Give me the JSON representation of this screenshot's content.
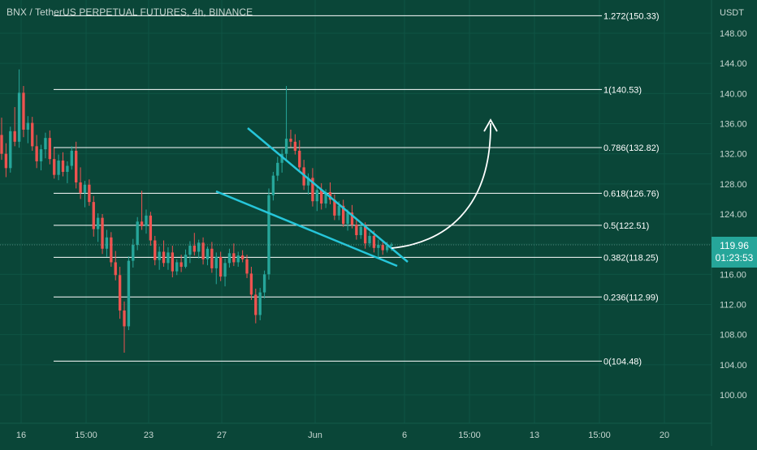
{
  "header": {
    "title": "BNX / TetherUS PERPETUAL FUTURES, 4h, BINANCE",
    "unit": "USDT"
  },
  "price_box": {
    "price": "119.96",
    "countdown": "01:23:53"
  },
  "colors": {
    "background": "#0a4638",
    "up": "#26a69a",
    "down": "#ef5350",
    "trendline": "#26c6da",
    "fib_line": "#ffffff",
    "arrow": "#ffffff",
    "grid": "#0f5444"
  },
  "chart_data": {
    "type": "candlestick",
    "title": "BNX / TetherUS PERPETUAL FUTURES, 4h, BINANCE",
    "ylabel": "USDT",
    "ylim": [
      96,
      154
    ],
    "y_ticks": [
      "148.00",
      "144.00",
      "140.00",
      "136.00",
      "132.00",
      "128.00",
      "124.00",
      "120.00",
      "116.00",
      "112.00",
      "108.00",
      "104.00",
      "100.00"
    ],
    "x_ticks": [
      "16",
      "15:00",
      "23",
      "27",
      "Jun",
      "6",
      "15:00",
      "13",
      "15:00",
      "20"
    ],
    "fib_levels": [
      {
        "label": "1.272(150.33)",
        "value": 150.33
      },
      {
        "label": "1(140.53)",
        "value": 140.53
      },
      {
        "label": "0.786(132.82)",
        "value": 132.82
      },
      {
        "label": "0.618(126.76)",
        "value": 126.76
      },
      {
        "label": "0.5(122.51)",
        "value": 122.51
      },
      {
        "label": "0.382(118.25)",
        "value": 118.25
      },
      {
        "label": "0.236(112.99)",
        "value": 112.99
      },
      {
        "label": "0(104.48)",
        "value": 104.48
      }
    ],
    "last_price": 119.96,
    "ohlc": [
      [
        134.5,
        136.8,
        131.2,
        132.0
      ],
      [
        132.0,
        133.4,
        128.9,
        130.1
      ],
      [
        130.1,
        135.6,
        129.5,
        135.0
      ],
      [
        135.0,
        138.2,
        133.0,
        133.6
      ],
      [
        133.6,
        143.2,
        132.8,
        140.1
      ],
      [
        140.1,
        141.0,
        134.2,
        135.2
      ],
      [
        135.2,
        137.0,
        133.4,
        136.1
      ],
      [
        136.1,
        136.9,
        132.4,
        133.0
      ],
      [
        133.0,
        134.5,
        130.1,
        131.0
      ],
      [
        131.0,
        133.2,
        129.8,
        132.6
      ],
      [
        132.6,
        134.8,
        131.4,
        134.1
      ],
      [
        134.1,
        135.1,
        130.6,
        131.3
      ],
      [
        131.3,
        132.8,
        128.7,
        129.2
      ],
      [
        129.2,
        131.9,
        128.5,
        131.1
      ],
      [
        131.1,
        132.2,
        129.0,
        129.6
      ],
      [
        129.6,
        131.0,
        128.1,
        130.4
      ],
      [
        130.4,
        133.0,
        129.9,
        132.4
      ],
      [
        132.4,
        133.6,
        127.4,
        128.2
      ],
      [
        128.2,
        130.2,
        126.0,
        126.8
      ],
      [
        126.8,
        128.4,
        124.9,
        127.9
      ],
      [
        127.9,
        128.6,
        125.1,
        125.6
      ],
      [
        125.6,
        126.4,
        121.0,
        122.0
      ],
      [
        122.0,
        124.1,
        120.3,
        123.5
      ],
      [
        123.5,
        124.0,
        118.7,
        119.4
      ],
      [
        119.4,
        121.9,
        118.3,
        120.9
      ],
      [
        120.9,
        121.6,
        117.0,
        117.6
      ],
      [
        117.6,
        119.1,
        115.2,
        115.9
      ],
      [
        115.9,
        117.0,
        110.1,
        111.2
      ],
      [
        111.2,
        112.4,
        105.6,
        109.1
      ],
      [
        109.1,
        118.4,
        108.6,
        117.8
      ],
      [
        117.8,
        120.7,
        116.9,
        119.9
      ],
      [
        119.9,
        123.6,
        119.2,
        123.0
      ],
      [
        123.0,
        127.1,
        121.9,
        122.4
      ],
      [
        122.4,
        124.6,
        121.4,
        123.8
      ],
      [
        123.8,
        124.3,
        119.8,
        120.5
      ],
      [
        120.5,
        121.1,
        117.2,
        117.9
      ],
      [
        117.9,
        119.7,
        116.6,
        119.0
      ],
      [
        119.0,
        120.5,
        117.0,
        117.5
      ],
      [
        117.5,
        119.6,
        116.6,
        118.9
      ],
      [
        118.9,
        119.8,
        115.6,
        116.4
      ],
      [
        116.4,
        118.0,
        115.9,
        117.6
      ],
      [
        117.6,
        118.6,
        116.3,
        117.0
      ],
      [
        117.0,
        119.3,
        116.8,
        118.6
      ],
      [
        118.6,
        120.4,
        117.5,
        119.8
      ],
      [
        119.8,
        121.5,
        118.5,
        119.0
      ],
      [
        119.0,
        120.6,
        118.1,
        120.2
      ],
      [
        120.2,
        120.9,
        117.3,
        118.0
      ],
      [
        118.0,
        119.7,
        117.2,
        119.4
      ],
      [
        119.4,
        120.3,
        116.2,
        116.8
      ],
      [
        116.8,
        118.9,
        114.7,
        118.3
      ],
      [
        118.3,
        119.0,
        115.1,
        115.7
      ],
      [
        115.7,
        118.1,
        114.4,
        117.5
      ],
      [
        117.5,
        119.4,
        116.9,
        118.8
      ],
      [
        118.8,
        120.1,
        117.1,
        117.6
      ],
      [
        117.6,
        119.0,
        117.0,
        118.5
      ],
      [
        118.5,
        119.2,
        117.6,
        118.0
      ],
      [
        118.0,
        118.6,
        115.5,
        116.1
      ],
      [
        116.1,
        117.0,
        112.6,
        113.3
      ],
      [
        113.3,
        114.1,
        109.5,
        110.6
      ],
      [
        110.6,
        114.2,
        109.9,
        113.6
      ],
      [
        113.6,
        116.5,
        112.8,
        116.0
      ],
      [
        116.0,
        127.4,
        115.3,
        126.5
      ],
      [
        126.5,
        129.6,
        125.8,
        129.1
      ],
      [
        129.1,
        131.6,
        128.4,
        130.8
      ],
      [
        130.8,
        132.6,
        129.5,
        132.0
      ],
      [
        132.0,
        141.0,
        131.2,
        134.0
      ],
      [
        134.0,
        135.2,
        132.9,
        133.6
      ],
      [
        133.6,
        134.6,
        131.9,
        132.4
      ],
      [
        132.4,
        133.8,
        129.8,
        130.2
      ],
      [
        130.2,
        131.2,
        127.2,
        127.8
      ],
      [
        127.8,
        129.4,
        126.6,
        128.8
      ],
      [
        128.8,
        130.1,
        125.0,
        125.7
      ],
      [
        125.7,
        127.8,
        124.4,
        127.2
      ],
      [
        127.2,
        128.1,
        124.6,
        125.4
      ],
      [
        125.4,
        127.3,
        124.8,
        126.9
      ],
      [
        126.9,
        128.2,
        125.3,
        125.9
      ],
      [
        125.9,
        126.6,
        123.2,
        123.8
      ],
      [
        123.8,
        125.7,
        123.2,
        125.1
      ],
      [
        125.1,
        125.9,
        122.3,
        122.7
      ],
      [
        122.7,
        124.6,
        121.8,
        124.2
      ],
      [
        124.2,
        125.2,
        122.1,
        122.6
      ],
      [
        122.6,
        123.5,
        120.6,
        121.2
      ],
      [
        121.2,
        122.8,
        120.7,
        122.3
      ],
      [
        122.3,
        122.9,
        119.4,
        120.1
      ],
      [
        120.1,
        121.6,
        119.6,
        121.1
      ],
      [
        121.1,
        121.8,
        118.9,
        119.5
      ],
      [
        119.5,
        120.6,
        118.2,
        119.9
      ],
      [
        119.9,
        120.4,
        118.6,
        119.2
      ],
      [
        119.2,
        120.3,
        118.9,
        119.8
      ],
      [
        119.8,
        120.2,
        119.1,
        119.96
      ]
    ]
  }
}
